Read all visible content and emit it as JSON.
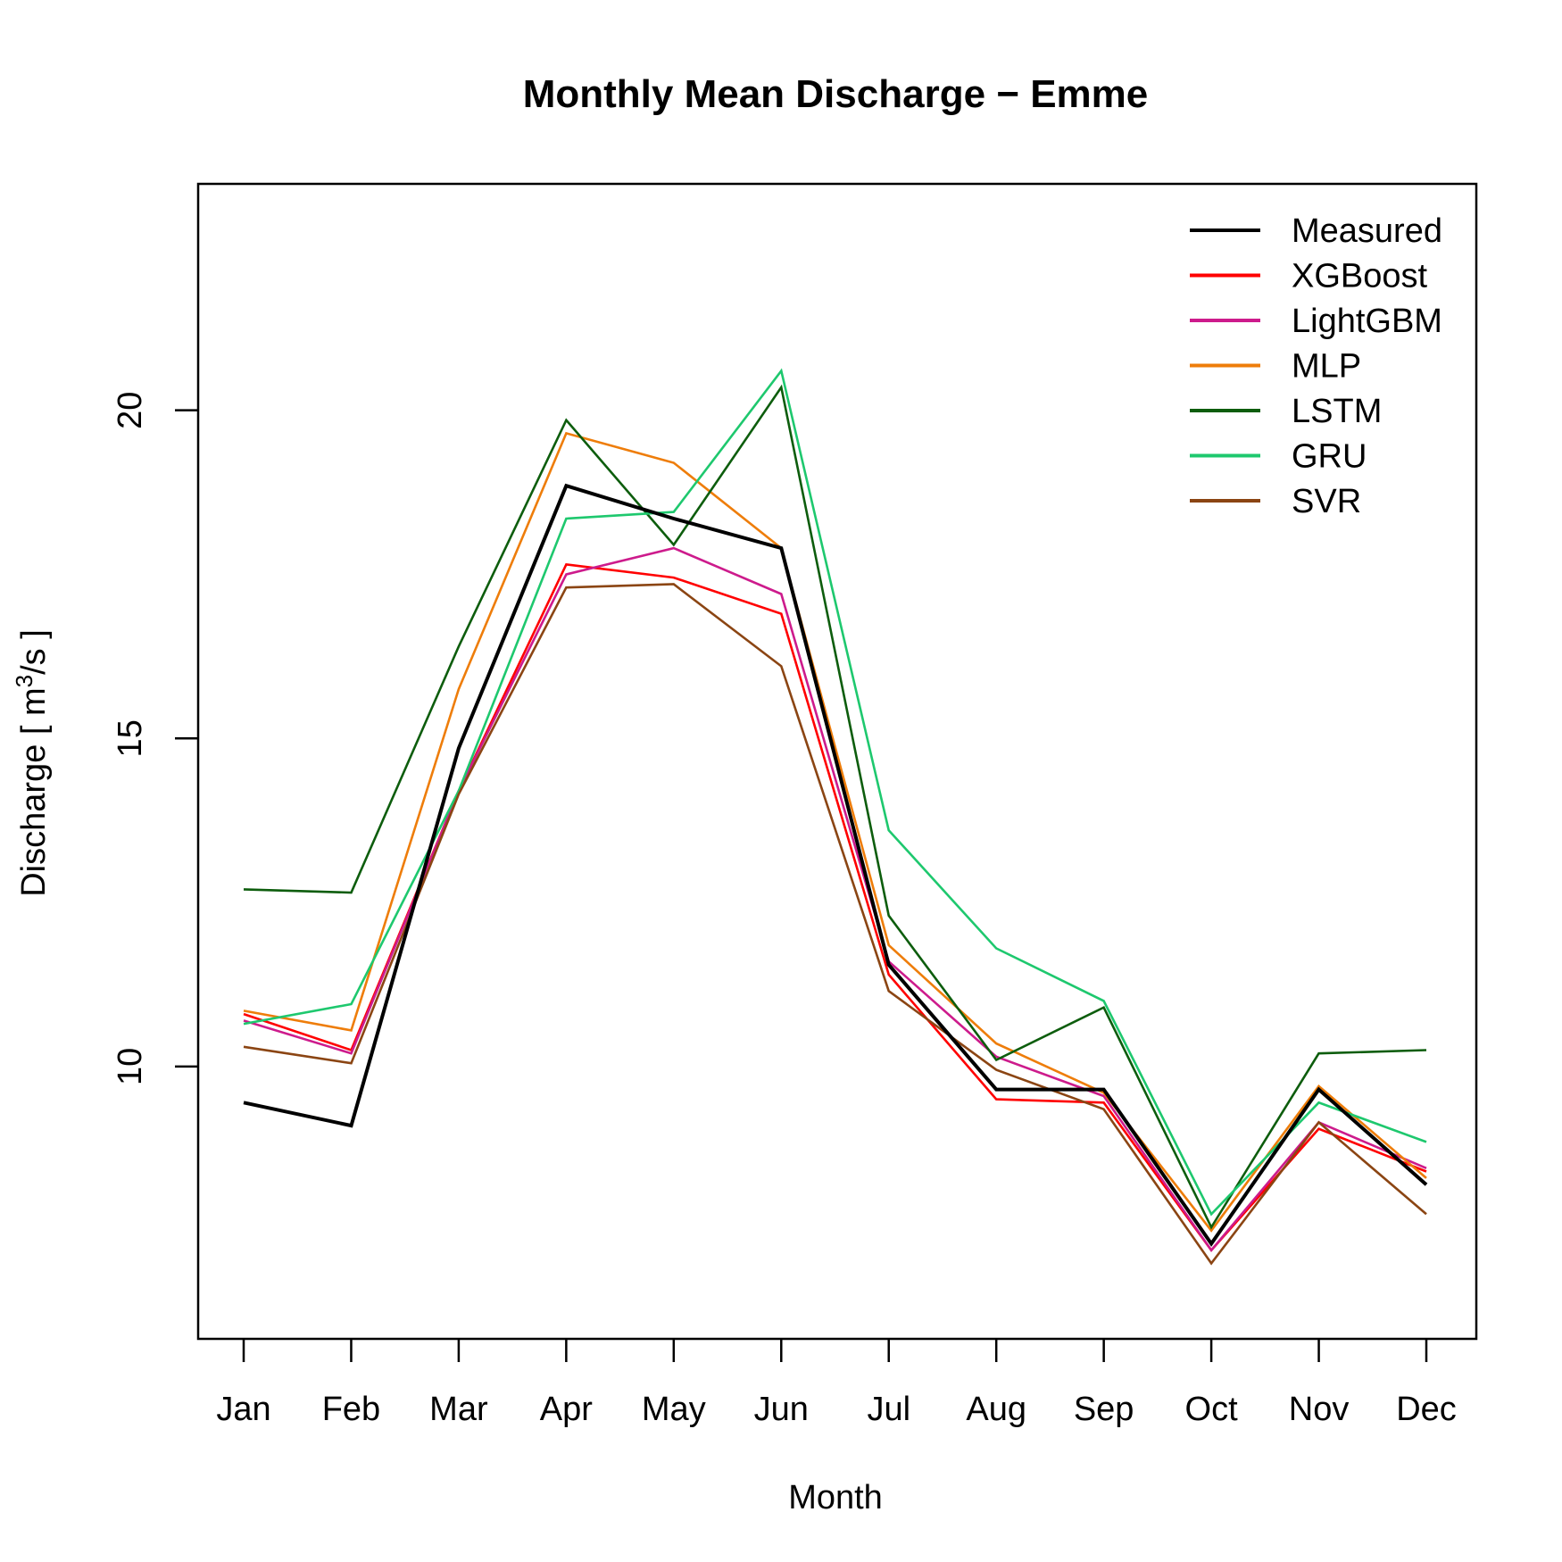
{
  "chart_data": {
    "type": "line",
    "title": "Monthly Mean Discharge − Emme",
    "xlabel": "Month",
    "ylabel_main": "Discharge [ m",
    "ylabel_sup": "3",
    "ylabel_end": "/s ]",
    "categories": [
      "Jan",
      "Feb",
      "Mar",
      "Apr",
      "May",
      "Jun",
      "Jul",
      "Aug",
      "Sep",
      "Oct",
      "Nov",
      "Dec"
    ],
    "yticks": [
      10,
      15,
      20
    ],
    "ylim": [
      5.85,
      23.45
    ],
    "grid": false,
    "legend_position": "top-right",
    "series": [
      {
        "name": "Measured",
        "color": "#000000",
        "width": 4,
        "values": [
          9.45,
          9.1,
          14.85,
          18.85,
          18.35,
          17.9,
          11.55,
          9.65,
          9.65,
          7.3,
          9.65,
          8.2
        ]
      },
      {
        "name": "XGBoost",
        "color": "#ff0000",
        "width": 2.6,
        "values": [
          10.8,
          10.25,
          14.2,
          17.65,
          17.45,
          16.9,
          11.4,
          9.5,
          9.45,
          7.2,
          9.05,
          8.4
        ]
      },
      {
        "name": "LightGBM",
        "color": "#cd1b8c",
        "width": 2.6,
        "values": [
          10.7,
          10.2,
          14.2,
          17.5,
          17.9,
          17.2,
          11.6,
          10.15,
          9.55,
          7.2,
          9.15,
          8.45
        ]
      },
      {
        "name": "MLP",
        "color": "#ee7d0a",
        "width": 2.6,
        "values": [
          10.85,
          10.55,
          15.75,
          19.65,
          19.2,
          17.9,
          11.85,
          10.35,
          9.6,
          7.5,
          9.7,
          8.3
        ]
      },
      {
        "name": "LSTM",
        "color": "#0d5d0d",
        "width": 2.6,
        "values": [
          12.7,
          12.65,
          16.4,
          19.85,
          17.95,
          20.35,
          12.3,
          10.1,
          10.9,
          7.55,
          10.2,
          10.25
        ]
      },
      {
        "name": "GRU",
        "color": "#1ec86e",
        "width": 2.6,
        "values": [
          10.65,
          10.95,
          14.2,
          18.35,
          18.45,
          20.6,
          13.6,
          11.8,
          11.0,
          7.75,
          9.45,
          8.85
        ]
      },
      {
        "name": "SVR",
        "color": "#8b4513",
        "width": 2.6,
        "values": [
          10.3,
          10.05,
          14.15,
          17.3,
          17.35,
          16.1,
          11.15,
          9.95,
          9.35,
          7.0,
          9.15,
          7.75
        ]
      }
    ]
  }
}
